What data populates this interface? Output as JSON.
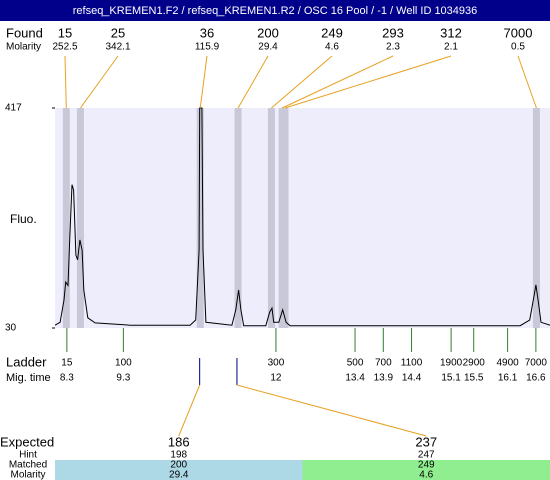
{
  "title": "refseq_KREMEN1.F2 / refseq_KREMEN1.R2 / OSC 16 Pool / -1 / Well ID 1034936",
  "chart_data": {
    "type": "electropherogram",
    "y_label": "Fluo.",
    "ylim": [
      30,
      417
    ],
    "yticks": [
      30,
      417
    ],
    "xlim": [
      8.09,
      16.85
    ],
    "color": "#000000",
    "background": "#ededfb",
    "band_color": "#c8c8d8",
    "x": [
      8.09,
      8.18,
      8.25,
      8.28,
      8.32,
      8.35,
      8.39,
      8.42,
      8.46,
      8.49,
      8.53,
      8.57,
      8.6,
      8.67,
      8.8,
      9.42,
      10.48,
      10.58,
      10.64,
      10.65,
      10.69,
      10.71,
      10.76,
      11.22,
      11.29,
      11.34,
      11.38,
      11.43,
      11.82,
      11.89,
      11.93,
      11.96,
      12.05,
      12.12,
      12.18,
      12.25,
      16.32,
      16.49,
      16.57,
      16.6,
      16.64,
      16.69,
      16.85
    ],
    "values": [
      35,
      40,
      79,
      111,
      105,
      185,
      282,
      273,
      158,
      150,
      185,
      167,
      97,
      48,
      39,
      35,
      35,
      44,
      167,
      417,
      417,
      167,
      40,
      35,
      62,
      97,
      62,
      34,
      34,
      58,
      65,
      40,
      40,
      62,
      40,
      34,
      34,
      44,
      88,
      106,
      79,
      40,
      35
    ],
    "found": {
      "label": "Found",
      "molarity_label": "Molarity",
      "line_color": "#e8a020",
      "peaks": [
        {
          "size": 15,
          "molarity": 252.5,
          "x": 8.29
        },
        {
          "size": 25,
          "molarity": 342.1,
          "x": 8.54
        },
        {
          "size": 36,
          "molarity": 115.9,
          "x": 10.66
        },
        {
          "size": 200,
          "molarity": 29.4,
          "x": 11.33
        },
        {
          "size": 249,
          "molarity": 4.6,
          "x": 11.92
        },
        {
          "size": 293,
          "molarity": 2.3,
          "x": 12.11
        },
        {
          "size": 312,
          "molarity": 2.1,
          "x": 12.16
        },
        {
          "size": 7000,
          "molarity": 0.5,
          "x": 16.61
        }
      ]
    },
    "ladder": {
      "label": "Ladder",
      "time_label": "Mig. time",
      "color": "#2e7d32",
      "sizes": [
        15,
        100,
        300,
        500,
        700,
        1100,
        1900,
        2900,
        4900,
        7000
      ],
      "times": [
        8.3,
        9.3,
        12,
        13.4,
        13.9,
        14.4,
        15.1,
        15.5,
        16.1,
        16.6
      ]
    },
    "expected": {
      "label": "Expected",
      "hint_label": "Hint",
      "matched_label": "Matched",
      "molarity_label": "Molarity",
      "items": [
        {
          "size": 186,
          "x": 10.65,
          "hint": 198,
          "matched": 200,
          "molarity": 29.4,
          "color": "#add8e6"
        },
        {
          "size": 237,
          "x": 11.31,
          "hint": 247,
          "matched": 249,
          "molarity": 4.6,
          "color": "#90ee90"
        }
      ]
    }
  }
}
